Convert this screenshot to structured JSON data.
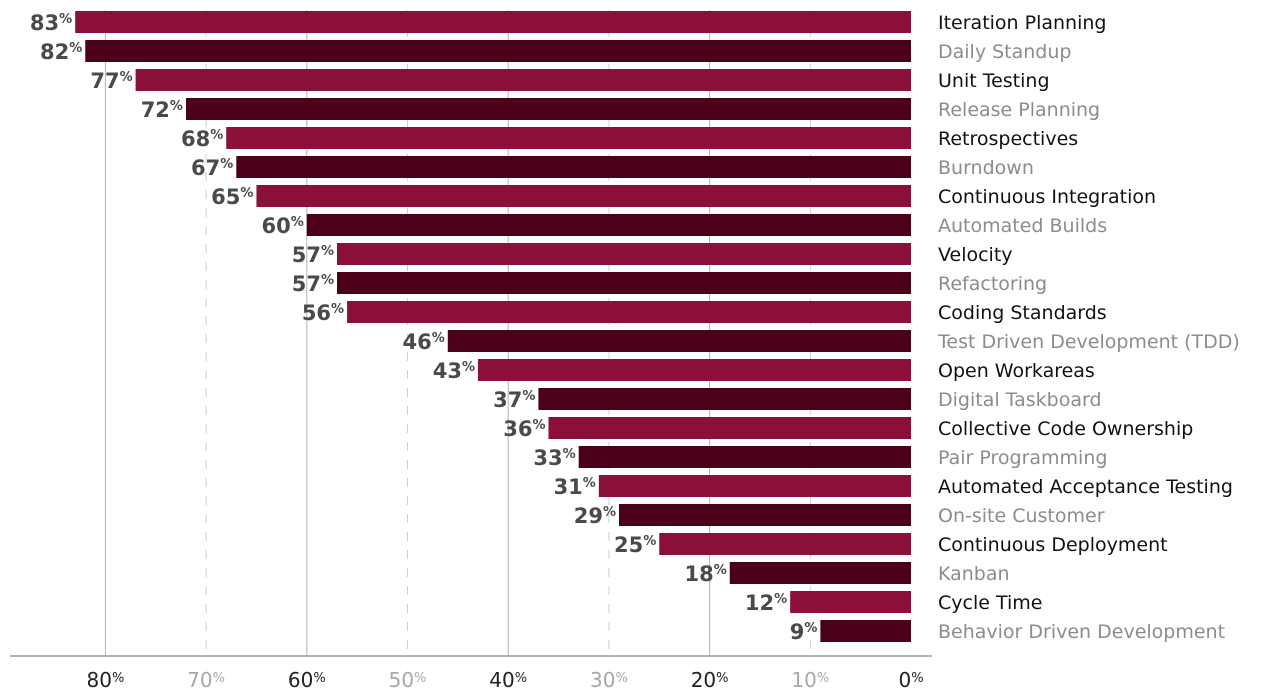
{
  "chart_data": {
    "type": "bar",
    "orientation": "horizontal",
    "categories": [
      "Iteration Planning",
      "Daily Standup",
      "Unit Testing",
      "Release Planning",
      "Retrospectives",
      "Burndown",
      "Continuous Integration",
      "Automated Builds",
      "Velocity",
      "Refactoring",
      "Coding Standards",
      "Test Driven Development (TDD)",
      "Open Workareas",
      "Digital Taskboard",
      "Collective Code Ownership",
      "Pair Programming",
      "Automated Acceptance Testing",
      "On-site Customer",
      "Continuous Deployment",
      "Kanban",
      "Cycle Time",
      "Behavior Driven Development"
    ],
    "values": [
      83,
      82,
      77,
      72,
      68,
      67,
      65,
      60,
      57,
      57,
      56,
      46,
      43,
      37,
      36,
      33,
      31,
      29,
      25,
      18,
      12,
      9
    ],
    "value_suffix": "%",
    "xlim": [
      0,
      90
    ],
    "x_direction": "reversed",
    "x_ticks": [
      {
        "value": 80,
        "label": "80",
        "major": true
      },
      {
        "value": 70,
        "label": "70",
        "major": false
      },
      {
        "value": 60,
        "label": "60",
        "major": true
      },
      {
        "value": 50,
        "label": "50",
        "major": false
      },
      {
        "value": 40,
        "label": "40",
        "major": true
      },
      {
        "value": 30,
        "label": "30",
        "major": false
      },
      {
        "value": 20,
        "label": "20",
        "major": true
      },
      {
        "value": 10,
        "label": "10",
        "major": false
      },
      {
        "value": 0,
        "label": "0",
        "major": true
      }
    ],
    "tick_suffix": "%",
    "grid": true,
    "title": "",
    "xlabel": "",
    "ylabel": "",
    "colors": {
      "bar_odd": "#8a0f3b",
      "bar_even": "#4a0018",
      "label_odd": "#111111",
      "label_even": "#8c8c8c",
      "value_text": "#4a4a4a",
      "tick_major": "#222222",
      "tick_minor": "#a8a8a8",
      "grid_major": "#b5b5b5",
      "grid_minor": "#cfcfcf",
      "axis": "#9a9a9a"
    }
  }
}
